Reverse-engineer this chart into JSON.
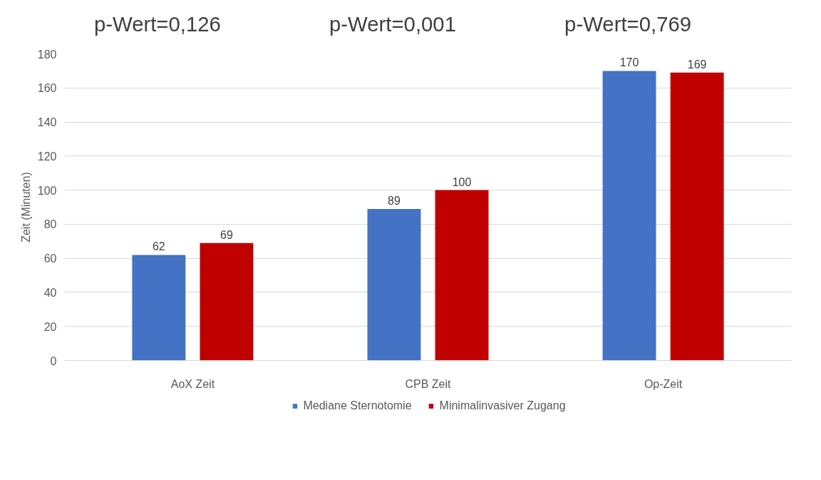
{
  "chart_data": {
    "type": "bar",
    "ylabel": "Zeit (Minuten)",
    "categories": [
      "AoX Zeit",
      "CPB Zeit",
      "Op-Zeit"
    ],
    "series": [
      {
        "name": "Mediane Sternotomie",
        "color": "#4472c4",
        "values": [
          62,
          89,
          170
        ]
      },
      {
        "name": "Minimalinvasiver Zugang",
        "color": "#c00000",
        "values": [
          69,
          100,
          169
        ]
      }
    ],
    "ylim": [
      0,
      180
    ],
    "yticks": [
      0,
      20,
      40,
      60,
      80,
      100,
      120,
      140,
      160,
      180
    ],
    "grid": "y",
    "legend": "bottom",
    "data_labels": true,
    "annotations": [
      "p-Wert=0,126",
      "p-Wert=0,001",
      "p-Wert=0,769"
    ]
  }
}
